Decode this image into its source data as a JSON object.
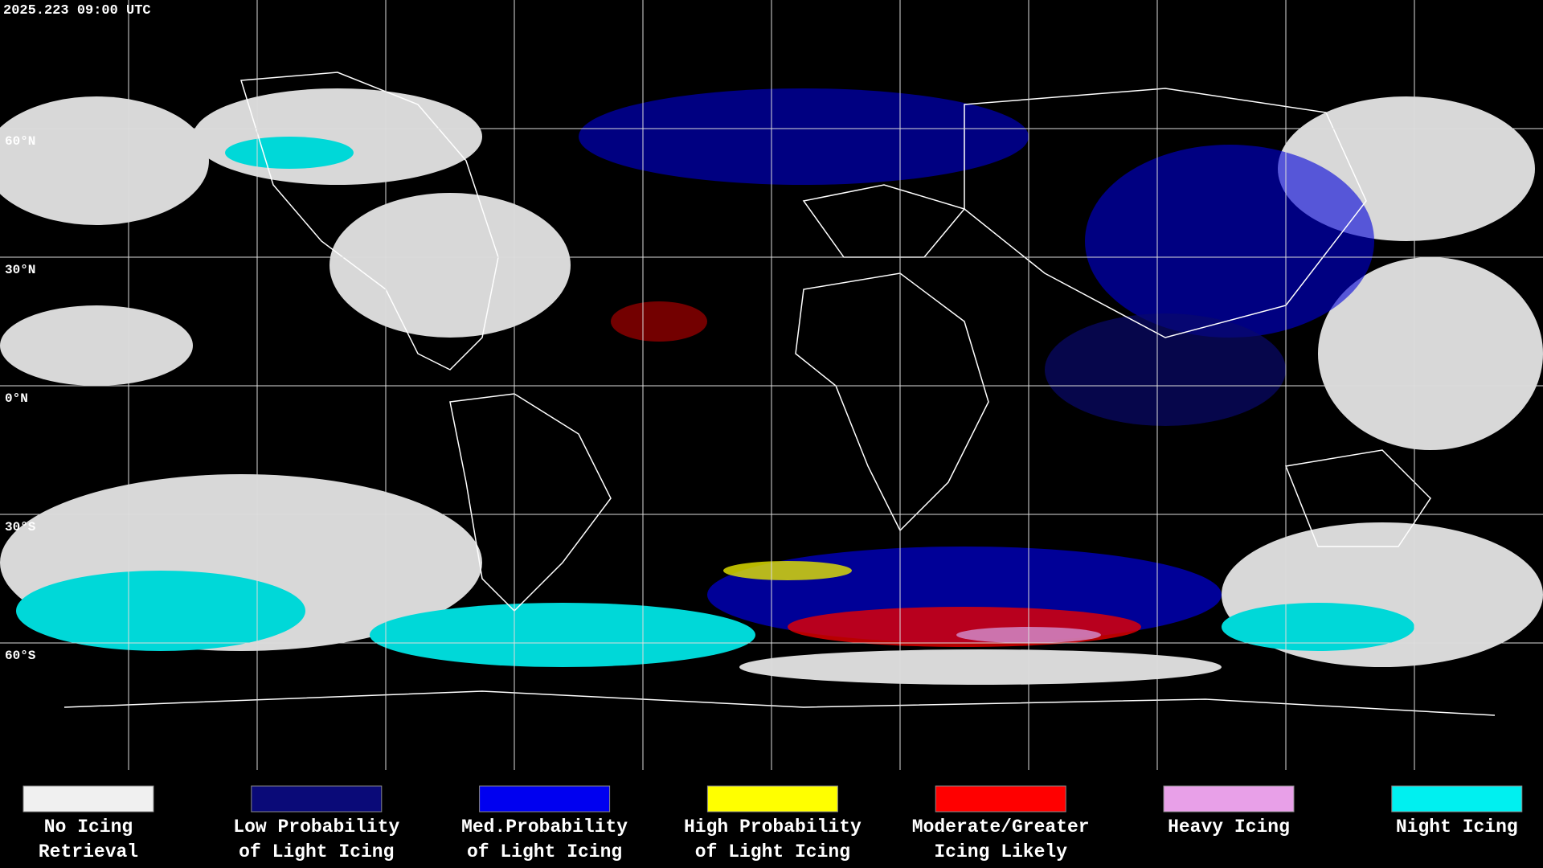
{
  "header": {
    "timestamp": "2025.223 09:00 UTC"
  },
  "grid_labels": [
    "60°N",
    "30°N",
    "0°N",
    "30°S",
    "60°S"
  ],
  "legend": [
    {
      "color": "#f0f0f0",
      "lines": [
        "No Icing",
        "Retrieval"
      ]
    },
    {
      "color": "#0a0a78",
      "lines": [
        "Low Probability",
        "of Light Icing"
      ]
    },
    {
      "color": "#0000f0",
      "lines": [
        "Med.Probability",
        "of Light Icing"
      ]
    },
    {
      "color": "#ffff00",
      "lines": [
        "High Probability",
        "of Light Icing"
      ]
    },
    {
      "color": "#ff0000",
      "lines": [
        "Moderate/Greater",
        "Icing Likely"
      ]
    },
    {
      "color": "#e8a0e8",
      "lines": [
        "Heavy Icing",
        ""
      ]
    },
    {
      "color": "#00f0f0",
      "lines": [
        "Night Icing",
        ""
      ]
    }
  ]
}
